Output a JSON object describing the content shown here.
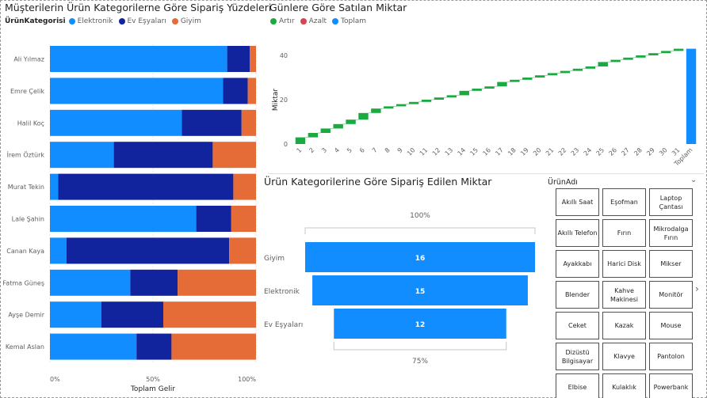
{
  "colors": {
    "elektronik": "#118dff",
    "ev_esyalari": "#12239e",
    "giyim": "#e66c37",
    "artir": "#1aab40",
    "azalt": "#d64550",
    "toplam": "#118dff"
  },
  "left_chart": {
    "title": "Müşterilerin Ürün Kategorilerne Göre Sipariş Yüzdeleri",
    "legend_title": "ÜrünKategorisi",
    "legend": [
      {
        "label": "Elektronik",
        "color": "#118dff"
      },
      {
        "label": "Ev Eşyaları",
        "color": "#12239e"
      },
      {
        "label": "Giyim",
        "color": "#e66c37"
      }
    ]
  },
  "waterfall": {
    "title": "Günlere Göre Satılan Miktar",
    "legend": [
      {
        "label": "Artır",
        "color": "#1aab40"
      },
      {
        "label": "Azalt",
        "color": "#d64550"
      },
      {
        "label": "Toplam",
        "color": "#118dff"
      }
    ]
  },
  "funnel": {
    "title": "Ürün Kategorilerine Göre Sipariş Edilen Miktar",
    "top_label": "100%",
    "bottom_label": "75%"
  },
  "slicer": {
    "title": "ÜrünAdı",
    "chevron": "⌄",
    "next": "›",
    "items": [
      "Akıllı Saat",
      "Eşofman",
      "Laptop Çantası",
      "Akıllı Telefon",
      "Fırın",
      "Mikrodalga Fırın",
      "Ayakkabı",
      "Harici Disk",
      "Mikser",
      "Blender",
      "Kahve Makinesi",
      "Monitör",
      "Ceket",
      "Kazak",
      "Mouse",
      "Dizüstü Bilgisayar",
      "Klavye",
      "Pantolon",
      "Elbise",
      "Kulaklık",
      "Powerbank"
    ]
  },
  "chart_data": [
    {
      "type": "bar",
      "orientation": "horizontal",
      "stacked": "100%",
      "title": "Müşterilerin Ürün Kategorilerne Göre Sipariş Yüzdeleri",
      "xlabel": "Toplam Gelir",
      "ylabel": "",
      "xlim": [
        0,
        100
      ],
      "xticks": [
        "0%",
        "50%",
        "100%"
      ],
      "legend_title": "ÜrünKategorisi",
      "legend_position": "top-left",
      "categories": [
        "Ali Yılmaz",
        "Emre Çelik",
        "Halil Koç",
        "İrem Öztürk",
        "Murat Tekin",
        "Lale Şahin",
        "Canan Kaya",
        "Fatma Güneş",
        "Ayşe Demir",
        "Kemal Aslan"
      ],
      "series": [
        {
          "name": "Elektronik",
          "values": [
            86,
            84,
            64,
            31,
            4,
            71,
            8,
            39,
            25,
            42
          ]
        },
        {
          "name": "Ev Eşyaları",
          "values": [
            11,
            12,
            29,
            48,
            85,
            17,
            79,
            23,
            30,
            17
          ]
        },
        {
          "name": "Giyim",
          "values": [
            3,
            4,
            7,
            21,
            11,
            12,
            13,
            38,
            45,
            41
          ]
        }
      ]
    },
    {
      "type": "bar",
      "subtype": "waterfall",
      "title": "Günlere Göre Satılan Miktar",
      "xlabel": "",
      "ylabel": "Miktar",
      "ylim": [
        0,
        46
      ],
      "yticks": [
        "0",
        "20",
        "40"
      ],
      "legend_position": "top-left",
      "categories": [
        "1",
        "2",
        "3",
        "4",
        "5",
        "6",
        "7",
        "8",
        "9",
        "10",
        "11",
        "12",
        "13",
        "14",
        "15",
        "16",
        "17",
        "18",
        "19",
        "20",
        "21",
        "22",
        "23",
        "24",
        "25",
        "26",
        "27",
        "28",
        "29",
        "30",
        "31",
        "Toplam"
      ],
      "increments": [
        3,
        2,
        2,
        2,
        2,
        3,
        2,
        1,
        1,
        1,
        1,
        1,
        1,
        2,
        1,
        1,
        2,
        1,
        1,
        1,
        1,
        1,
        1,
        1,
        2,
        1,
        1,
        1,
        1,
        1,
        1
      ],
      "total": 43
    },
    {
      "type": "bar",
      "subtype": "funnel",
      "title": "Ürün Kategorilerine Göre Sipariş Edilen Miktar",
      "categories": [
        "Giyim",
        "Elektronik",
        "Ev Eşyaları"
      ],
      "values": [
        16,
        15,
        12
      ],
      "top_percent_label": "100%",
      "bottom_percent_label": "75%"
    }
  ]
}
